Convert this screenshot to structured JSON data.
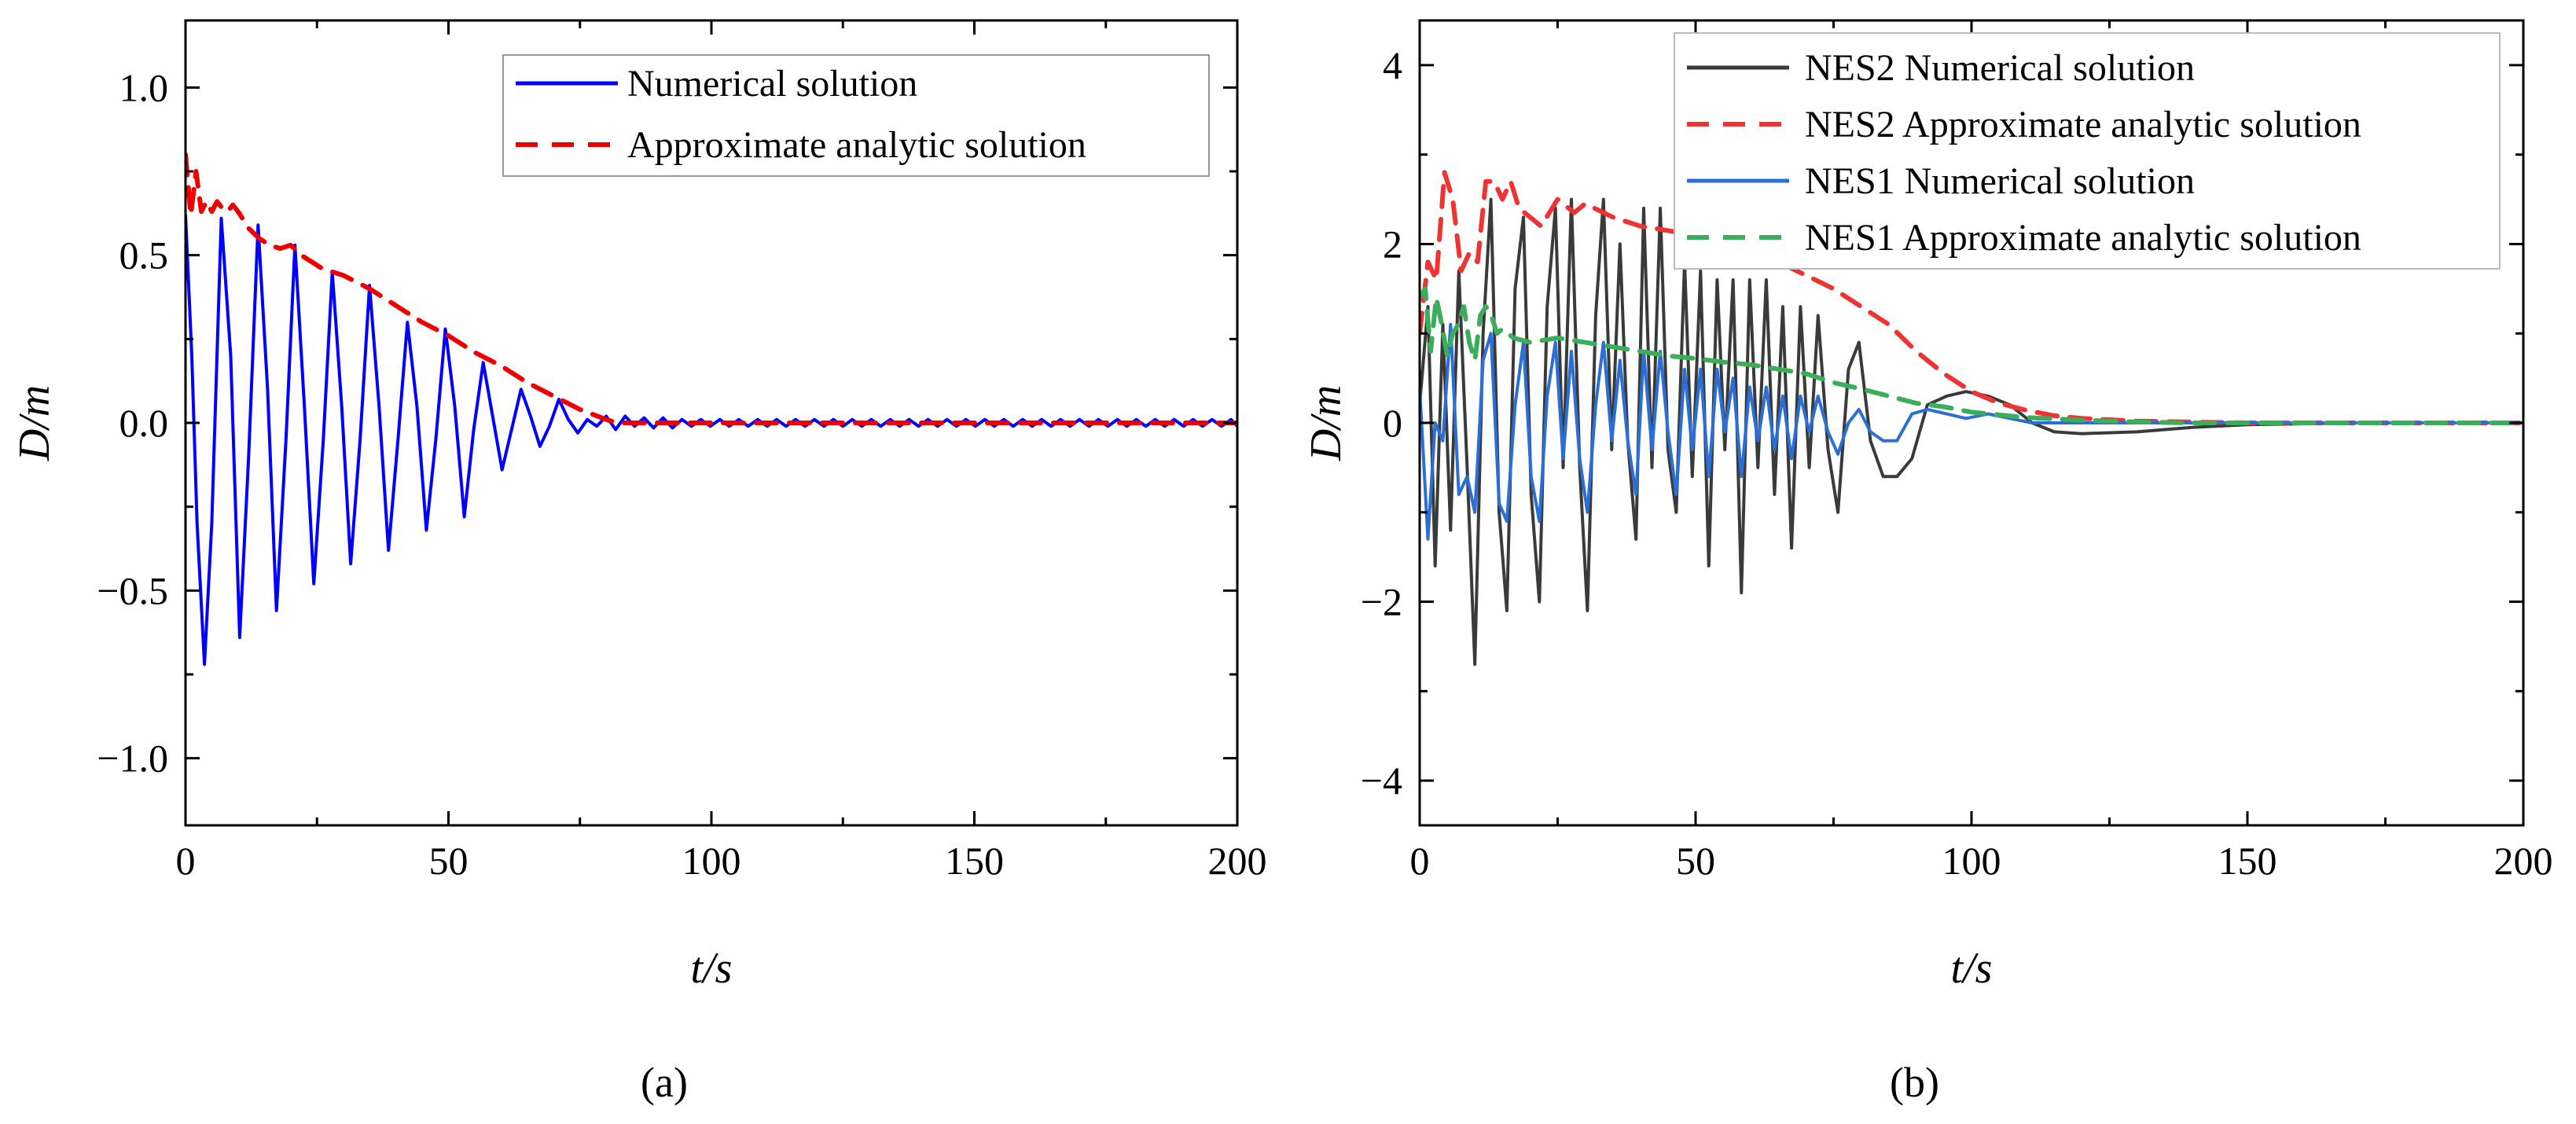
{
  "chart_data": [
    {
      "type": "line",
      "panel_label": "(a)",
      "xlabel": "t/s",
      "ylabel": "D/m",
      "xlim": [
        0,
        200
      ],
      "ylim": [
        -1.2,
        1.2
      ],
      "xticks": [
        0,
        50,
        100,
        150,
        200
      ],
      "xtick_labels": [
        "0",
        "50",
        "100",
        "150",
        "200"
      ],
      "yticks": [
        -1.0,
        -0.5,
        0.0,
        0.5,
        1.0
      ],
      "ytick_labels": [
        "−1.0",
        "−0.5",
        "0.0",
        "0.5",
        "1.0"
      ],
      "grid": false,
      "legend_position": "top-right",
      "series": [
        {
          "name": "Numerical solution",
          "color": "#0000ff",
          "dash": "solid",
          "x": [
            0,
            1.2,
            2.2,
            3.6,
            5.0,
            6.8,
            8.6,
            10.3,
            12.0,
            13.8,
            15.6,
            17.3,
            19.1,
            20.8,
            22.6,
            24.4,
            26.2,
            27.9,
            29.7,
            31.4,
            33.2,
            35.0,
            36.8,
            38.6,
            40.4,
            42.2,
            44.0,
            45.8,
            47.6,
            49.4,
            51.2,
            53.0,
            54.8,
            56.6,
            58.4,
            60.2,
            62.0,
            63.8,
            65.6,
            67.4,
            69.2,
            71.0,
            72.8,
            74.6,
            76.4,
            78.2,
            80.0,
            81.8,
            83.6,
            85.4,
            87.2,
            89.0,
            90.8,
            92.6,
            94.4,
            96.2,
            98.0,
            99.8,
            101.6,
            103.4,
            105.2,
            107.0,
            108.8,
            110.6,
            112.4,
            114.2,
            116.0,
            117.8,
            119.6,
            121.4,
            123.2,
            125.0,
            126.8,
            128.6,
            130.4,
            132.2,
            134.0,
            135.8,
            137.6,
            139.4,
            141.2,
            143.0,
            144.8,
            146.6,
            148.4,
            150.2,
            152.0,
            153.8,
            155.6,
            157.4,
            159.2,
            161.0,
            162.8,
            164.6,
            166.4,
            168.2,
            170.0,
            171.8,
            173.6,
            175.4,
            177.2,
            179.0,
            180.8,
            182.6,
            184.4,
            186.2,
            188.0,
            189.8,
            191.6,
            193.4,
            195.2,
            197.0,
            198.8,
            200
          ],
          "y": [
            0.62,
            0.2,
            -0.3,
            -0.72,
            -0.3,
            0.61,
            0.2,
            -0.64,
            -0.1,
            0.59,
            0.1,
            -0.56,
            -0.05,
            0.53,
            0.05,
            -0.48,
            -0.05,
            0.45,
            0.05,
            -0.42,
            -0.05,
            0.41,
            0.05,
            -0.38,
            -0.05,
            0.3,
            0.05,
            -0.32,
            -0.05,
            0.28,
            0.05,
            -0.28,
            -0.02,
            0.18,
            0.02,
            -0.14,
            -0.02,
            0.1,
            0.02,
            -0.07,
            -0.01,
            0.07,
            0.01,
            -0.03,
            0.01,
            -0.01,
            0.02,
            -0.02,
            0.02,
            -0.01,
            0.015,
            -0.015,
            0.015,
            -0.015,
            0.01,
            -0.01,
            0.01,
            -0.01,
            0.01,
            -0.01,
            0.01,
            -0.01,
            0.01,
            -0.01,
            0.01,
            -0.01,
            0.01,
            -0.01,
            0.01,
            -0.01,
            0.01,
            -0.01,
            0.01,
            -0.01,
            0.01,
            -0.01,
            0.01,
            -0.01,
            0.01,
            -0.01,
            0.01,
            -0.01,
            0.01,
            -0.01,
            0.01,
            -0.01,
            0.01,
            -0.01,
            0.01,
            -0.01,
            0.01,
            -0.01,
            0.01,
            -0.01,
            0.01,
            -0.01,
            0.01,
            -0.01,
            0.01,
            -0.01,
            0.01,
            -0.01,
            0.01,
            -0.01,
            0.01,
            -0.01,
            0.01,
            -0.01,
            0.01,
            -0.01,
            0.01,
            -0.01,
            0.01,
            -0.01
          ]
        },
        {
          "name": "Approximate analytic solution",
          "color": "#ee0000",
          "dash": "dashed",
          "x": [
            0,
            1,
            2,
            3,
            4,
            5,
            6,
            7,
            8,
            9,
            10,
            12,
            14,
            16,
            18,
            20,
            22,
            24,
            26,
            28,
            30,
            35,
            40,
            45,
            50,
            55,
            60,
            65,
            70,
            75,
            80,
            82,
            84,
            90,
            100,
            120,
            140,
            160,
            180,
            200
          ],
          "y": [
            0.8,
            0.62,
            0.75,
            0.63,
            0.66,
            0.63,
            0.66,
            0.64,
            0.63,
            0.65,
            0.63,
            0.58,
            0.55,
            0.53,
            0.52,
            0.53,
            0.5,
            0.48,
            0.46,
            0.45,
            0.44,
            0.4,
            0.35,
            0.3,
            0.26,
            0.21,
            0.17,
            0.12,
            0.08,
            0.04,
            0.01,
            0.0,
            0.0,
            0.0,
            0.0,
            0.0,
            0.0,
            0.0,
            0.0,
            0.0
          ]
        }
      ]
    },
    {
      "type": "line",
      "panel_label": "(b)",
      "xlabel": "t/s",
      "ylabel": "D/m",
      "xlim": [
        0,
        200
      ],
      "ylim": [
        -4.5,
        4.5
      ],
      "xticks": [
        0,
        50,
        100,
        150,
        200
      ],
      "xtick_labels": [
        "0",
        "50",
        "100",
        "150",
        "200"
      ],
      "yticks": [
        -4,
        -2,
        0,
        2,
        4
      ],
      "ytick_labels": [
        "−4",
        "−2",
        "0",
        "2",
        "4"
      ],
      "grid": false,
      "legend_position": "top-right",
      "series": [
        {
          "name": "NES2 Numerical solution",
          "color": "#3a3a3a",
          "dash": "solid",
          "x": [
            0,
            1.5,
            2.8,
            4.2,
            5.6,
            7.1,
            8.6,
            10.0,
            11.5,
            12.9,
            14.4,
            15.8,
            17.3,
            18.8,
            20.2,
            21.7,
            23.1,
            24.6,
            26.0,
            27.5,
            29.0,
            30.4,
            31.9,
            33.3,
            34.8,
            36.3,
            37.7,
            39.2,
            40.6,
            42.1,
            43.6,
            45.0,
            46.5,
            48.0,
            49.4,
            50.9,
            52.4,
            53.9,
            55.3,
            56.8,
            58.3,
            59.8,
            61.3,
            62.8,
            64.3,
            65.8,
            67.4,
            69.0,
            70.6,
            72.2,
            74.0,
            75.8,
            77.7,
            79.6,
            81.7,
            84.0,
            86.5,
            89.2,
            92.0,
            95.5,
            99.0,
            103.0,
            107.0,
            111.0,
            115.0,
            120.0,
            130.0,
            140.0,
            150.0,
            170.0,
            200.0
          ],
          "y": [
            0.2,
            1.3,
            -1.6,
            1.1,
            -1.2,
            1.7,
            -0.5,
            -2.7,
            1.0,
            2.5,
            -1.0,
            -2.1,
            1.5,
            2.3,
            -0.8,
            -2.0,
            1.3,
            2.4,
            -0.5,
            2.5,
            -0.5,
            -2.1,
            1.2,
            2.5,
            -0.3,
            2.0,
            -0.2,
            -1.3,
            2.4,
            -0.5,
            2.4,
            -0.3,
            -1.0,
            1.8,
            -0.6,
            1.7,
            -1.6,
            1.6,
            -0.3,
            1.6,
            -1.9,
            1.6,
            -0.5,
            1.6,
            -0.8,
            1.3,
            -1.4,
            1.3,
            -0.5,
            1.2,
            -0.3,
            -1.0,
            0.6,
            0.9,
            -0.2,
            -0.6,
            -0.6,
            -0.4,
            0.2,
            0.3,
            0.35,
            0.3,
            0.2,
            0.0,
            -0.1,
            -0.12,
            -0.1,
            -0.05,
            -0.02,
            0.0,
            0.0
          ]
        },
        {
          "name": "NES2 Approximate analytic solution",
          "color": "#ee3333",
          "dash": "dashed",
          "x": [
            0,
            1.5,
            3,
            4.5,
            6,
            7.5,
            9,
            10.5,
            12,
            13.5,
            15,
            16.5,
            18,
            20,
            22,
            25,
            28,
            30,
            35,
            40,
            45,
            50,
            55,
            60,
            65,
            70,
            75,
            80,
            85,
            90,
            95,
            100,
            105,
            110,
            115,
            120,
            130,
            140,
            150,
            200
          ],
          "y": [
            1.0,
            1.8,
            1.6,
            2.8,
            2.5,
            1.7,
            1.9,
            1.8,
            2.7,
            2.7,
            2.5,
            2.7,
            2.4,
            2.3,
            2.2,
            2.5,
            2.35,
            2.45,
            2.3,
            2.2,
            2.15,
            2.1,
            2.0,
            1.9,
            1.8,
            1.65,
            1.5,
            1.3,
            1.1,
            0.8,
            0.55,
            0.35,
            0.22,
            0.14,
            0.08,
            0.05,
            0.02,
            0.01,
            0.0,
            0.0
          ]
        },
        {
          "name": "NES1 Numerical solution",
          "color": "#2b6fd6",
          "dash": "solid",
          "x": [
            0,
            1.5,
            2.8,
            4.2,
            5.6,
            7.1,
            8.6,
            10.0,
            11.5,
            12.9,
            14.4,
            15.8,
            17.3,
            18.8,
            20.2,
            21.7,
            23.1,
            24.6,
            26.0,
            27.5,
            29.0,
            30.4,
            31.9,
            33.3,
            34.8,
            36.3,
            37.7,
            39.2,
            40.6,
            42.1,
            43.6,
            45.0,
            46.5,
            48.0,
            49.4,
            50.9,
            52.4,
            53.9,
            55.3,
            56.8,
            58.3,
            59.8,
            61.3,
            62.8,
            64.3,
            65.8,
            67.4,
            69.0,
            70.6,
            72.2,
            74.0,
            75.8,
            77.7,
            79.6,
            81.7,
            84.0,
            86.5,
            89.2,
            92.0,
            95.5,
            99.0,
            103.0,
            107.0,
            111.0,
            115.0,
            120.0,
            130.0,
            140.0,
            150.0,
            170.0,
            200.0
          ],
          "y": [
            0.4,
            -1.3,
            0.0,
            -0.2,
            1.1,
            -0.8,
            -0.6,
            -1.0,
            0.7,
            1.0,
            -0.9,
            -1.1,
            0.2,
            0.9,
            -0.6,
            -1.1,
            0.3,
            0.9,
            -0.4,
            0.8,
            -0.4,
            -1.0,
            0.2,
            0.9,
            -0.2,
            0.7,
            -0.2,
            -0.8,
            0.8,
            -0.3,
            0.8,
            -0.1,
            -0.8,
            0.6,
            -0.3,
            0.6,
            -0.6,
            0.6,
            -0.1,
            0.5,
            -0.6,
            0.4,
            -0.2,
            0.4,
            -0.3,
            0.3,
            -0.4,
            0.3,
            -0.1,
            0.3,
            -0.1,
            -0.35,
            0.0,
            0.15,
            -0.1,
            -0.2,
            -0.2,
            0.1,
            0.15,
            0.1,
            0.05,
            0.1,
            0.05,
            0.0,
            0.0,
            0.0,
            0.0,
            0.0,
            0.0,
            0.0,
            0.0
          ]
        },
        {
          "name": "NES1 Approximate analytic solution",
          "color": "#3cad5a",
          "dash": "dashed",
          "x": [
            0,
            1,
            2,
            3,
            4,
            5,
            6,
            7,
            8,
            9,
            10,
            11,
            12,
            13,
            14,
            15,
            17,
            20,
            25,
            30,
            35,
            40,
            45,
            50,
            55,
            60,
            65,
            70,
            75,
            80,
            85,
            90,
            95,
            100,
            105,
            110,
            120,
            130,
            140,
            150,
            200
          ],
          "y": [
            1.4,
            1.5,
            0.8,
            1.4,
            1.1,
            0.75,
            1.0,
            1.1,
            1.3,
            0.9,
            0.7,
            1.2,
            1.3,
            1.2,
            1.0,
            1.05,
            0.95,
            0.9,
            0.95,
            0.9,
            0.85,
            0.8,
            0.75,
            0.72,
            0.68,
            0.65,
            0.6,
            0.55,
            0.45,
            0.38,
            0.3,
            0.22,
            0.18,
            0.12,
            0.09,
            0.06,
            0.03,
            0.01,
            0.0,
            0.0,
            0.0
          ]
        }
      ]
    }
  ]
}
